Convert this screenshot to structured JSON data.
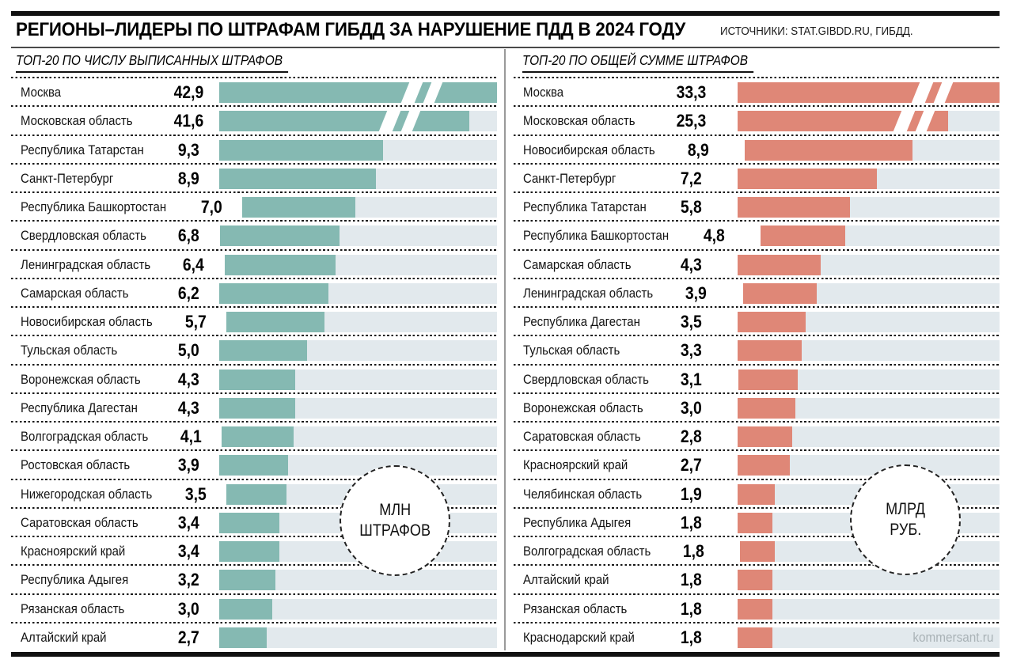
{
  "header": {
    "title": "РЕГИОНЫ–ЛИДЕРЫ ПО ШТРАФАМ ГИБДД ЗА НАРУШЕНИЕ ПДД В 2024 ГОДУ",
    "sources": "ИСТОЧНИКИ: STAT.GIBDD.RU, ГИБДД."
  },
  "footer": {
    "credit": "kommersant.ru"
  },
  "colors": {
    "teal_bar": "#85b9b2",
    "salmon_bar": "#df8777",
    "track": "#e2e9ed",
    "frame": "#111111",
    "divider": "#9a9a9a",
    "credit_text": "#a9b2b6"
  },
  "panels": [
    {
      "subtitle": "ТОП-20 ПО ЧИСЛУ ВЫПИСАННЫХ ШТРАФОВ",
      "unit_circle": [
        "МЛН",
        "ШТРАФОВ"
      ],
      "bar_color": "#85b9b2",
      "scale_max": 15.74,
      "axis_breaks": [
        {
          "row": 0,
          "bar_pct": 100,
          "break_pct": 67
        },
        {
          "row": 1,
          "bar_pct": 90,
          "break_pct": 59
        }
      ]
    },
    {
      "subtitle": "ТОП-20 ПО ОБЩЕЙ СУММЕ ШТРАФОВ",
      "unit_circle": [
        "МЛРД",
        "РУБ."
      ],
      "bar_color": "#df8777",
      "scale_max": 13.52,
      "axis_breaks": [
        {
          "row": 0,
          "bar_pct": 100,
          "break_pct": 68
        },
        {
          "row": 1,
          "bar_pct": 80.5,
          "break_pct": 61
        }
      ]
    }
  ],
  "chart_data": [
    {
      "type": "bar",
      "title": "ТОП-20 ПО ЧИСЛУ ВЫПИСАННЫХ ШТРАФОВ",
      "unit": "млн штрафов",
      "orientation": "horizontal",
      "categories": [
        "Москва",
        "Московская область",
        "Республика Татарстан",
        "Санкт-Петербург",
        "Республика Башкортостан",
        "Свердловская область",
        "Ленинградская область",
        "Самарская область",
        "Новосибирская область",
        "Тульская область",
        "Воронежская область",
        "Республика Дагестан",
        "Волгоградская область",
        "Ростовская область",
        "Нижегородская область",
        "Саратовская область",
        "Красноярский край",
        "Республика Адыгея",
        "Рязанская область",
        "Алтайский край"
      ],
      "values": [
        42.9,
        41.6,
        9.3,
        8.9,
        7.0,
        6.8,
        6.4,
        6.2,
        5.7,
        5.0,
        4.3,
        4.3,
        4.1,
        3.9,
        3.5,
        3.4,
        3.4,
        3.2,
        3.0,
        2.7
      ],
      "axis_truncated_rows": [
        0,
        1
      ]
    },
    {
      "type": "bar",
      "title": "ТОП-20 ПО ОБЩЕЙ СУММЕ ШТРАФОВ",
      "unit": "млрд руб.",
      "orientation": "horizontal",
      "categories": [
        "Москва",
        "Московская область",
        "Новосибирская область",
        "Санкт-Петербург",
        "Республика Татарстан",
        "Республика Башкортостан",
        "Самарская область",
        "Ленинградская область",
        "Республика Дагестан",
        "Тульская область",
        "Свердловская область",
        "Воронежская область",
        "Саратовская область",
        "Красноярский край",
        "Челябинская область",
        "Республика Адыгея",
        "Волгоградская область",
        "Алтайский край",
        "Рязанская область",
        "Краснодарский край"
      ],
      "values": [
        33.3,
        25.3,
        8.9,
        7.2,
        5.8,
        4.8,
        4.3,
        3.9,
        3.5,
        3.3,
        3.1,
        3.0,
        2.8,
        2.7,
        1.9,
        1.8,
        1.8,
        1.8,
        1.8,
        1.8
      ],
      "axis_truncated_rows": [
        0,
        1
      ]
    }
  ]
}
